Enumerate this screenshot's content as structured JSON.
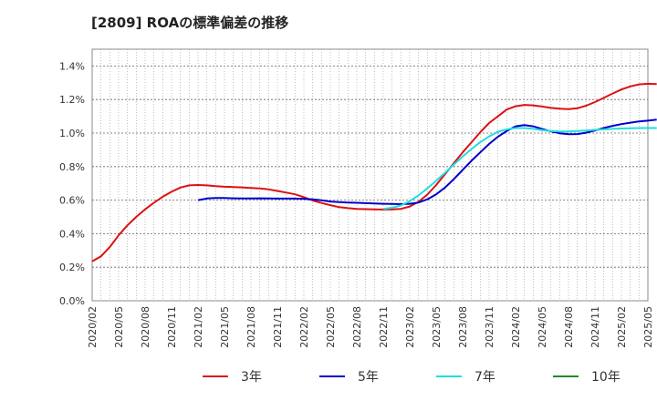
{
  "chart_data": {
    "type": "line",
    "title": "[2809]  ROAの標準偏差の推移",
    "xlabel": "",
    "ylabel": "",
    "x_ticks": [
      "2020/02",
      "2020/05",
      "2020/08",
      "2020/11",
      "2021/02",
      "2021/05",
      "2021/08",
      "2021/11",
      "2022/02",
      "2022/05",
      "2022/08",
      "2022/11",
      "2023/02",
      "2023/05",
      "2023/08",
      "2023/11",
      "2024/02",
      "2024/05",
      "2024/08",
      "2024/11",
      "2025/02",
      "2025/05"
    ],
    "y_ticks": [
      "0.0%",
      "0.2%",
      "0.4%",
      "0.6%",
      "0.8%",
      "1.0%",
      "1.2%",
      "1.4%"
    ],
    "ylim": [
      0,
      1.5
    ],
    "grid": true,
    "legend_position": "bottom",
    "series": [
      {
        "name": "3年",
        "color": "#dd1111",
        "points": [
          [
            "2020/02",
            0.235
          ],
          [
            "2020/03",
            0.265
          ],
          [
            "2020/04",
            0.32
          ],
          [
            "2020/05",
            0.39
          ],
          [
            "2020/06",
            0.45
          ],
          [
            "2020/07",
            0.5
          ],
          [
            "2020/08",
            0.545
          ],
          [
            "2020/09",
            0.585
          ],
          [
            "2020/10",
            0.62
          ],
          [
            "2020/11",
            0.65
          ],
          [
            "2020/12",
            0.675
          ],
          [
            "2021/01",
            0.688
          ],
          [
            "2021/02",
            0.69
          ],
          [
            "2021/03",
            0.688
          ],
          [
            "2021/04",
            0.683
          ],
          [
            "2021/05",
            0.68
          ],
          [
            "2021/06",
            0.678
          ],
          [
            "2021/07",
            0.676
          ],
          [
            "2021/08",
            0.673
          ],
          [
            "2021/09",
            0.67
          ],
          [
            "2021/10",
            0.664
          ],
          [
            "2021/11",
            0.655
          ],
          [
            "2021/12",
            0.645
          ],
          [
            "2022/01",
            0.635
          ],
          [
            "2022/02",
            0.618
          ],
          [
            "2022/03",
            0.598
          ],
          [
            "2022/04",
            0.583
          ],
          [
            "2022/05",
            0.57
          ],
          [
            "2022/06",
            0.558
          ],
          [
            "2022/07",
            0.552
          ],
          [
            "2022/08",
            0.548
          ],
          [
            "2022/09",
            0.546
          ],
          [
            "2022/10",
            0.545
          ],
          [
            "2022/11",
            0.544
          ],
          [
            "2022/12",
            0.545
          ],
          [
            "2023/01",
            0.548
          ],
          [
            "2023/02",
            0.562
          ],
          [
            "2023/03",
            0.59
          ],
          [
            "2023/04",
            0.633
          ],
          [
            "2023/05",
            0.69
          ],
          [
            "2023/06",
            0.755
          ],
          [
            "2023/07",
            0.82
          ],
          [
            "2023/08",
            0.885
          ],
          [
            "2023/09",
            0.945
          ],
          [
            "2023/10",
            1.005
          ],
          [
            "2023/11",
            1.06
          ],
          [
            "2023/12",
            1.1
          ],
          [
            "2024/01",
            1.14
          ],
          [
            "2024/02",
            1.16
          ],
          [
            "2024/03",
            1.168
          ],
          [
            "2024/04",
            1.165
          ],
          [
            "2024/05",
            1.158
          ],
          [
            "2024/06",
            1.15
          ],
          [
            "2024/07",
            1.145
          ],
          [
            "2024/08",
            1.143
          ],
          [
            "2024/09",
            1.148
          ],
          [
            "2024/10",
            1.163
          ],
          [
            "2024/11",
            1.185
          ],
          [
            "2024/12",
            1.21
          ],
          [
            "2025/01",
            1.236
          ],
          [
            "2025/02",
            1.26
          ],
          [
            "2025/03",
            1.278
          ],
          [
            "2025/04",
            1.29
          ],
          [
            "2025/05",
            1.294
          ],
          [
            "2025/06",
            1.292
          ]
        ]
      },
      {
        "name": "5年",
        "color": "#0000cc",
        "points": [
          [
            "2021/02",
            0.6
          ],
          [
            "2021/03",
            0.61
          ],
          [
            "2021/04",
            0.613
          ],
          [
            "2021/05",
            0.613
          ],
          [
            "2021/06",
            0.611
          ],
          [
            "2021/07",
            0.61
          ],
          [
            "2021/08",
            0.61
          ],
          [
            "2021/09",
            0.611
          ],
          [
            "2021/10",
            0.61
          ],
          [
            "2021/11",
            0.609
          ],
          [
            "2021/12",
            0.609
          ],
          [
            "2022/01",
            0.609
          ],
          [
            "2022/02",
            0.608
          ],
          [
            "2022/03",
            0.605
          ],
          [
            "2022/04",
            0.599
          ],
          [
            "2022/05",
            0.592
          ],
          [
            "2022/06",
            0.588
          ],
          [
            "2022/07",
            0.586
          ],
          [
            "2022/08",
            0.584
          ],
          [
            "2022/09",
            0.582
          ],
          [
            "2022/10",
            0.58
          ],
          [
            "2022/11",
            0.578
          ],
          [
            "2022/12",
            0.577
          ],
          [
            "2023/01",
            0.576
          ],
          [
            "2023/02",
            0.578
          ],
          [
            "2023/03",
            0.586
          ],
          [
            "2023/04",
            0.605
          ],
          [
            "2023/05",
            0.635
          ],
          [
            "2023/06",
            0.675
          ],
          [
            "2023/07",
            0.725
          ],
          [
            "2023/08",
            0.78
          ],
          [
            "2023/09",
            0.835
          ],
          [
            "2023/10",
            0.885
          ],
          [
            "2023/11",
            0.935
          ],
          [
            "2023/12",
            0.978
          ],
          [
            "2024/01",
            1.012
          ],
          [
            "2024/02",
            1.04
          ],
          [
            "2024/03",
            1.048
          ],
          [
            "2024/04",
            1.04
          ],
          [
            "2024/05",
            1.025
          ],
          [
            "2024/06",
            1.01
          ],
          [
            "2024/07",
            0.999
          ],
          [
            "2024/08",
            0.993
          ],
          [
            "2024/09",
            0.994
          ],
          [
            "2024/10",
            1.002
          ],
          [
            "2024/11",
            1.015
          ],
          [
            "2024/12",
            1.03
          ],
          [
            "2025/01",
            1.043
          ],
          [
            "2025/02",
            1.053
          ],
          [
            "2025/03",
            1.062
          ],
          [
            "2025/04",
            1.069
          ],
          [
            "2025/05",
            1.074
          ],
          [
            "2025/06",
            1.08
          ]
        ]
      },
      {
        "name": "7年",
        "color": "#22dddd",
        "points": [
          [
            "2022/11",
            0.548
          ],
          [
            "2022/12",
            0.555
          ],
          [
            "2023/01",
            0.568
          ],
          [
            "2023/02",
            0.594
          ],
          [
            "2023/03",
            0.628
          ],
          [
            "2023/04",
            0.67
          ],
          [
            "2023/05",
            0.715
          ],
          [
            "2023/06",
            0.763
          ],
          [
            "2023/07",
            0.812
          ],
          [
            "2023/08",
            0.86
          ],
          [
            "2023/09",
            0.905
          ],
          [
            "2023/10",
            0.945
          ],
          [
            "2023/11",
            0.98
          ],
          [
            "2023/12",
            1.008
          ],
          [
            "2024/01",
            1.022
          ],
          [
            "2024/02",
            1.03
          ],
          [
            "2024/03",
            1.03
          ],
          [
            "2024/04",
            1.025
          ],
          [
            "2024/05",
            1.018
          ],
          [
            "2024/06",
            1.012
          ],
          [
            "2024/07",
            1.009
          ],
          [
            "2024/08",
            1.01
          ],
          [
            "2024/09",
            1.012
          ],
          [
            "2024/10",
            1.015
          ],
          [
            "2024/11",
            1.019
          ],
          [
            "2024/12",
            1.022
          ],
          [
            "2025/01",
            1.025
          ],
          [
            "2025/02",
            1.027
          ],
          [
            "2025/03",
            1.029
          ],
          [
            "2025/04",
            1.03
          ],
          [
            "2025/05",
            1.03
          ],
          [
            "2025/06",
            1.03
          ]
        ]
      },
      {
        "name": "10年",
        "color": "#228b22",
        "points": []
      }
    ]
  }
}
